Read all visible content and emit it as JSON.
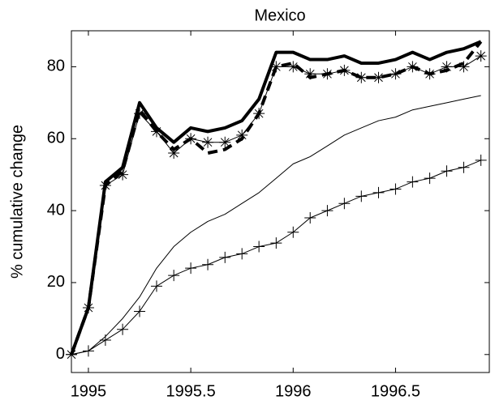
{
  "chart_data": {
    "type": "line",
    "title": "Mexico",
    "y_label": "% cumulative change",
    "x": [
      1994.917,
      1995.0,
      1995.083,
      1995.167,
      1995.25,
      1995.333,
      1995.417,
      1995.5,
      1995.583,
      1995.667,
      1995.75,
      1995.833,
      1995.917,
      1996.0,
      1996.083,
      1996.167,
      1996.25,
      1996.333,
      1996.417,
      1996.5,
      1996.583,
      1996.667,
      1996.75,
      1996.833,
      1996.917
    ],
    "series": [
      {
        "color": "#000000",
        "width": 4,
        "dash": "none",
        "marker": "none",
        "values": [
          0,
          13,
          48,
          52,
          70,
          63,
          59,
          63,
          62,
          63,
          65,
          71,
          84,
          84,
          82,
          82,
          83,
          81,
          81,
          82,
          84,
          82,
          84,
          85,
          87
        ]
      },
      {
        "color": "#000000",
        "width": 4,
        "dash": "12 7",
        "marker": "none",
        "values": [
          0,
          13,
          47,
          51,
          68,
          62,
          57,
          60,
          56,
          57,
          60,
          67,
          80,
          81,
          77,
          78,
          79,
          77,
          77,
          78,
          80,
          78,
          79,
          81,
          87
        ]
      },
      {
        "color": "#000000",
        "width": 1,
        "dash": "none",
        "marker": "star",
        "values": [
          0,
          13,
          47,
          50,
          67,
          62,
          56,
          60,
          59,
          59,
          61,
          67,
          80,
          80,
          78,
          78,
          79,
          77,
          77,
          78,
          80,
          78,
          80,
          80,
          83
        ]
      },
      {
        "color": "#000000",
        "width": 1,
        "dash": "none",
        "marker": "none",
        "values": [
          0,
          1,
          5,
          10,
          16,
          24,
          30,
          34,
          37,
          39,
          42,
          45,
          49,
          53,
          55,
          58,
          61,
          63,
          65,
          66,
          68,
          69,
          70,
          71,
          72
        ]
      },
      {
        "color": "#000000",
        "width": 1,
        "dash": "none",
        "marker": "plus",
        "values": [
          0,
          1,
          4,
          7,
          12,
          19,
          22,
          24,
          25,
          27,
          28,
          30,
          31,
          34,
          38,
          40,
          42,
          44,
          45,
          46,
          48,
          49,
          51,
          52,
          54
        ]
      }
    ],
    "xlim": [
      1994.917,
      1996.958
    ],
    "ylim": [
      -5,
      90
    ],
    "xticks": [
      1995,
      1995.5,
      1996,
      1996.5
    ],
    "yticks": [
      0,
      20,
      40,
      60,
      80
    ]
  }
}
